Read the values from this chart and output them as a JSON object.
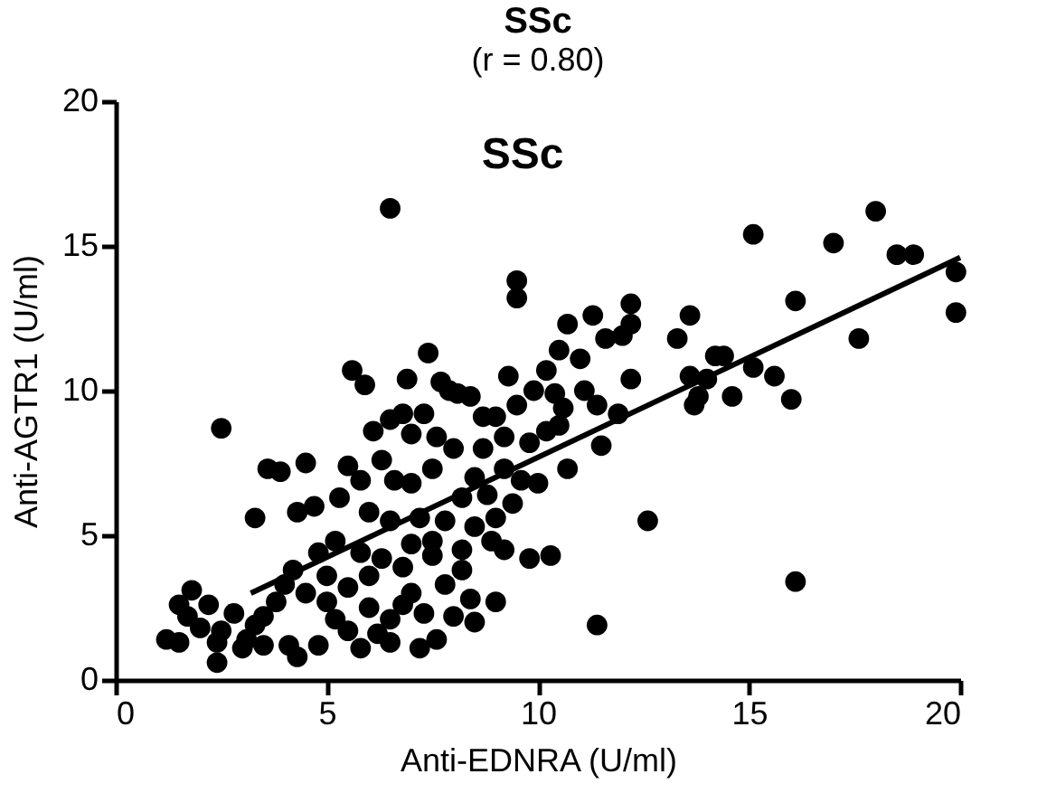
{
  "chart_data": {
    "type": "scatter",
    "title": "SSc",
    "subtitle": "(r = 0.80)",
    "xlabel": "Anti-EDNRA (U/ml)",
    "ylabel": "Anti-AGTR1 (U/ml)",
    "annotations": [
      "SSc"
    ],
    "xlim": [
      0,
      20
    ],
    "ylim": [
      0,
      20
    ],
    "xticks": [
      0,
      5,
      10,
      15,
      20
    ],
    "yticks": [
      0,
      5,
      10,
      15,
      20
    ],
    "grid": false,
    "marker": "circle",
    "series": [
      {
        "color": "#000000",
        "x": [
          6.5,
          9.5,
          9.5,
          15.1,
          17,
          18,
          18.5,
          18.9,
          19.9,
          19.9,
          16.1,
          17.6,
          16,
          16.1,
          11.4,
          12.6,
          2.5,
          5.6,
          5.9,
          7.7,
          13.3,
          13.6,
          13.6,
          14,
          14.2,
          14.4,
          15.1,
          14.6,
          15.6,
          13.7,
          13.8,
          12,
          12.2,
          12.2,
          11.3,
          11.6,
          10.7,
          10.5,
          11,
          10.2,
          10.6,
          11.1,
          11.5,
          10.5,
          9.3,
          9.5,
          9.9,
          9,
          8.4,
          8.1,
          7.9,
          7.3,
          6.8,
          6.5,
          6.1,
          7,
          7.6,
          8,
          8.7,
          9.2,
          9.8,
          10.2,
          10,
          10.7,
          10.3,
          9.8,
          9.2,
          9.4,
          8.5,
          8.2,
          7.5,
          7,
          6.6,
          6.3,
          5.8,
          5.5,
          4.5,
          3.6,
          3.9,
          3.3,
          4.3,
          4.7,
          5.3,
          6,
          6.5,
          7.2,
          7.8,
          8.5,
          9,
          8.9,
          7.8,
          8.2,
          7.5,
          7,
          6.3,
          5.8,
          5.2,
          4.8,
          4.2,
          4,
          3.8,
          3.5,
          3.3,
          2.8,
          2.5,
          2.4,
          2.4,
          2,
          1.5,
          1.7,
          1.8,
          2.2,
          1.2,
          1.5,
          3.1,
          3.5,
          4.5,
          5,
          5.2,
          5.5,
          6,
          6.2,
          6.5,
          6.8,
          7,
          7.3,
          7.6,
          8,
          8.5,
          8.4,
          9,
          4.1,
          4.3,
          4.8,
          5.8,
          6.5,
          7.2,
          3,
          5,
          5.5,
          6,
          6.8,
          7.5,
          8.2,
          9.6,
          9.2,
          8.8,
          10.4,
          11.9,
          11.4,
          12.2,
          6.9,
          7.4,
          8.7
        ],
        "values": [
          16.3,
          13.8,
          13.2,
          15.4,
          15.1,
          16.2,
          14.7,
          14.7,
          14.1,
          12.7,
          13.1,
          11.8,
          9.7,
          3.4,
          1.9,
          5.5,
          8.7,
          10.7,
          10.2,
          10.3,
          11.8,
          12.6,
          10.5,
          10.4,
          11.2,
          11.2,
          10.8,
          9.8,
          10.5,
          9.5,
          9.8,
          11.9,
          12.3,
          13,
          12.6,
          11.8,
          12.3,
          11.4,
          11.1,
          10.7,
          9.4,
          10,
          8.1,
          8.8,
          10.5,
          9.5,
          10,
          9.1,
          9.8,
          9.9,
          10,
          9.2,
          9.2,
          9,
          8.6,
          8.5,
          8.4,
          8,
          8,
          8.4,
          8.2,
          8.6,
          6.8,
          7.3,
          4.3,
          4.2,
          4.5,
          6.1,
          7,
          6.3,
          7.3,
          6.8,
          6.9,
          7.6,
          6.9,
          7.4,
          7.5,
          7.3,
          7.2,
          5.6,
          5.8,
          6,
          6.3,
          5.8,
          5.5,
          5.6,
          5.5,
          5.3,
          5.6,
          4.8,
          3.3,
          3.8,
          4.3,
          4.7,
          4.2,
          4.4,
          4.8,
          4.4,
          3.8,
          3.3,
          2.7,
          2.2,
          1.9,
          2.3,
          1.7,
          1.3,
          0.6,
          1.8,
          2.6,
          2.2,
          3.1,
          2.6,
          1.4,
          1.3,
          1.4,
          1.2,
          3,
          2.7,
          2.1,
          1.7,
          2.5,
          1.6,
          2.1,
          2.6,
          3,
          2.3,
          1.4,
          2.2,
          2,
          2.8,
          2.7,
          1.2,
          0.8,
          1.2,
          1.1,
          1.3,
          1.1,
          1.1,
          3.6,
          3.2,
          3.6,
          3.9,
          4.8,
          4.5,
          6.9,
          7.3,
          6.4,
          9.9,
          9.2,
          9.5,
          10.4,
          10.4,
          11.3,
          9.1
        ]
      },
      {
        "type": "line",
        "color": "#000000",
        "marker": "none",
        "line_style": "solid",
        "x": [
          3.2,
          20
        ],
        "values": [
          3.0,
          14.6
        ]
      }
    ]
  }
}
